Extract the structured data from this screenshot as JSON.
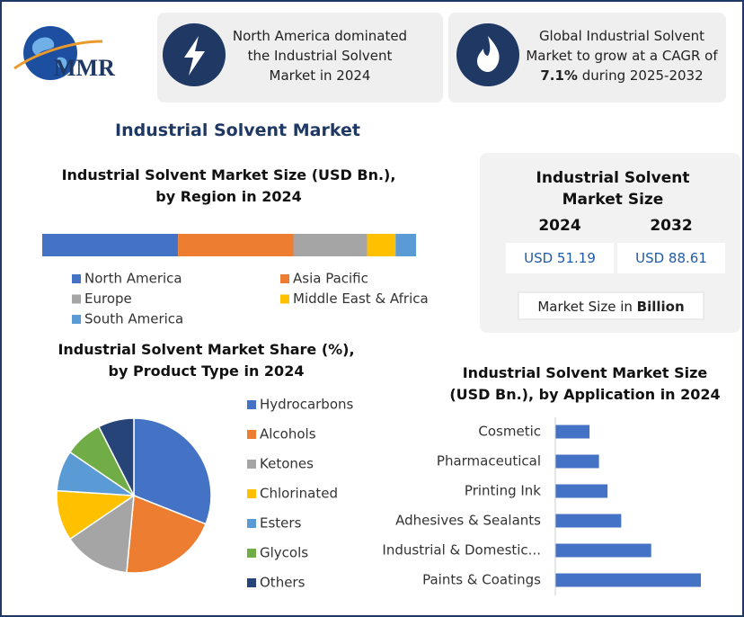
{
  "header": {
    "logo_text": "MMR",
    "facts": [
      "North America dominated the Industrial Solvent Market in 2024",
      [
        "Global Industrial Solvent Market to grow at a CAGR of ",
        "7.1%",
        " during 2025-2032"
      ]
    ]
  },
  "title": "Industrial Solvent Market",
  "market_size": {
    "title": "Industrial Solvent Market Size",
    "years": [
      "2024",
      "2032"
    ],
    "values": [
      "USD 51.19",
      "USD 88.61"
    ],
    "note": [
      "Market Size in ",
      "Billion"
    ]
  },
  "chart_data": [
    {
      "type": "stacked_bar",
      "title": "Industrial Solvent Market Size (USD Bn.), by Region in 2024",
      "series": [
        {
          "name": "North America",
          "color": "#4472c4",
          "values": [
            18.6
          ]
        },
        {
          "name": "Asia Pacific",
          "color": "#ed7d31",
          "values": [
            15.8
          ]
        },
        {
          "name": "Europe",
          "color": "#a5a5a5",
          "values": [
            10.1
          ]
        },
        {
          "name": "Middle East & Africa",
          "color": "#ffc000",
          "values": [
            3.9
          ]
        },
        {
          "name": "South America",
          "color": "#5b9bd5",
          "values": [
            2.8
          ]
        }
      ]
    },
    {
      "type": "pie",
      "title": "Industrial Solvent Market Share (%), by Product Type in 2024",
      "categories": [
        "Hydrocarbons",
        "Alcohols",
        "Ketones",
        "Chlorinated",
        "Esters",
        "Glycols",
        "Others"
      ],
      "values": [
        31,
        20.5,
        14,
        10.5,
        8.5,
        8,
        7.5
      ],
      "colors": [
        "#4472c4",
        "#ed7d31",
        "#a5a5a5",
        "#ffc000",
        "#5b9bd5",
        "#70ad47",
        "#264478"
      ]
    },
    {
      "type": "hbar",
      "title": "Industrial Solvent Market Size (USD Bn.), by Application in 2024",
      "categories": [
        "Cosmetic",
        "Pharmaceutical",
        "Printing Ink",
        "Adhesives & Sealants",
        "Industrial & Domestic...",
        "Paints & Coatings"
      ],
      "values": [
        4.0,
        5.1,
        6.1,
        7.7,
        11.2,
        17.0
      ],
      "color": "#4472c4"
    }
  ]
}
